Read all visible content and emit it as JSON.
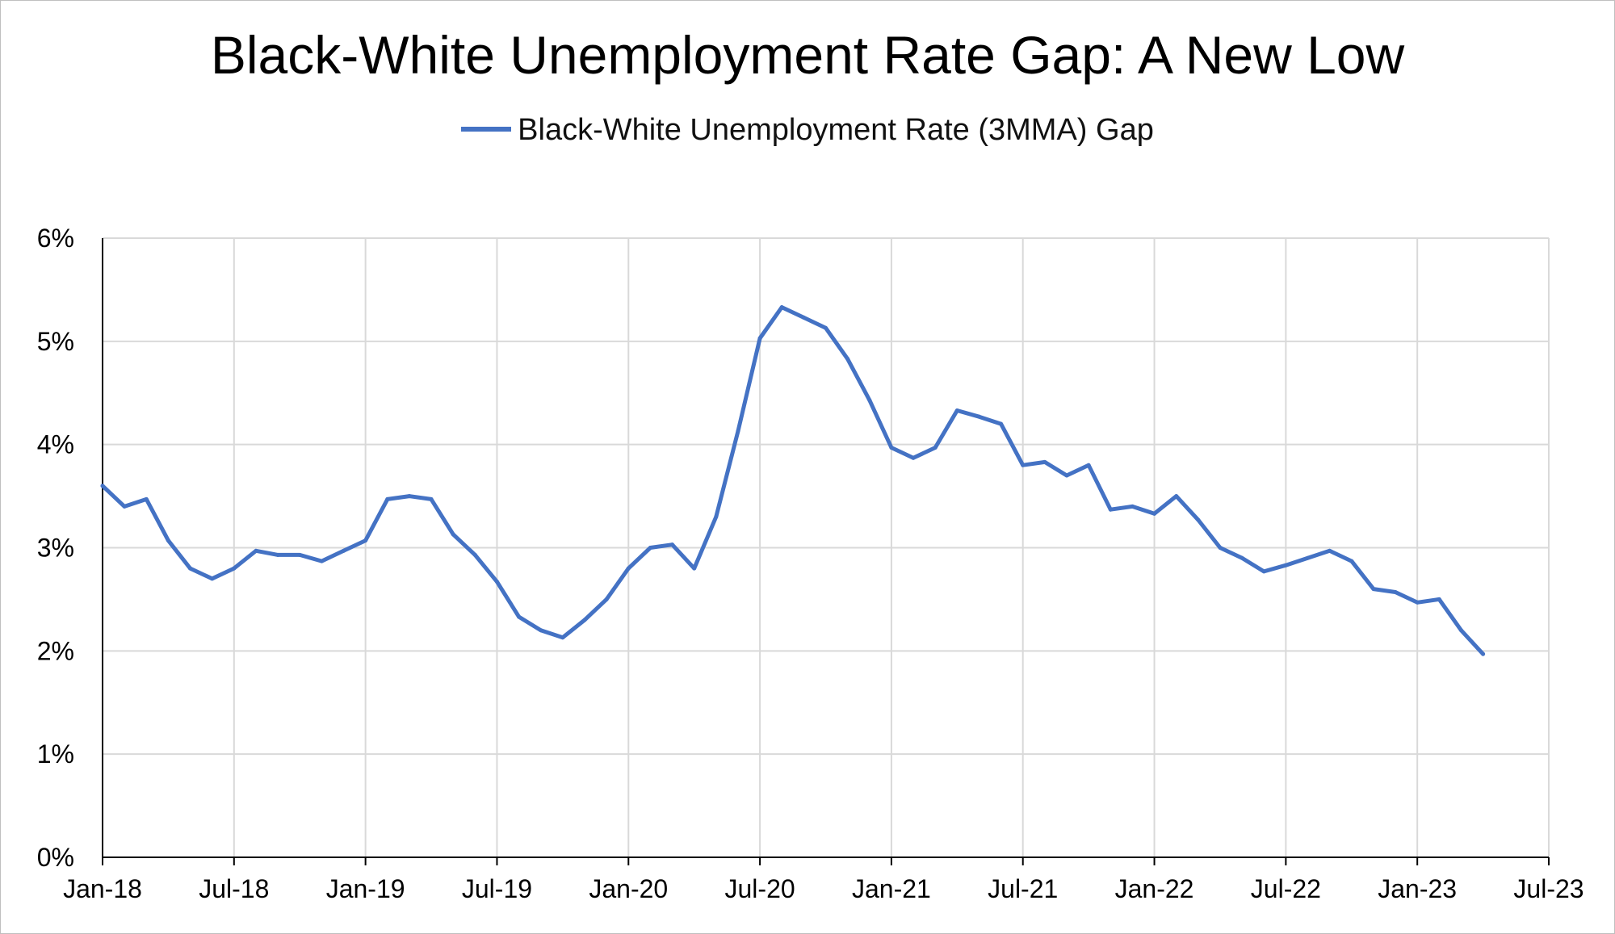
{
  "chart_data": {
    "type": "line",
    "title": "Black-White Unemployment Rate Gap: A New Low",
    "xlabel": "",
    "ylabel": "",
    "legend_position": "top-center",
    "grid": true,
    "ylim": [
      0,
      6
    ],
    "y_ticks": [
      "0%",
      "1%",
      "2%",
      "3%",
      "4%",
      "5%",
      "6%"
    ],
    "x_ticks": [
      "Jan-18",
      "Jul-18",
      "Jan-19",
      "Jul-19",
      "Jan-20",
      "Jul-20",
      "Jan-21",
      "Jul-21",
      "Jan-22",
      "Jul-22",
      "Jan-23",
      "Jul-23"
    ],
    "x_start": "Jan-18",
    "x_end": "Jul-23",
    "series": [
      {
        "name": "Black-White Unemployment Rate (3MMA) Gap",
        "color": "#4472c4",
        "x": [
          "Jan-18",
          "Feb-18",
          "Mar-18",
          "Apr-18",
          "May-18",
          "Jun-18",
          "Jul-18",
          "Aug-18",
          "Sep-18",
          "Oct-18",
          "Nov-18",
          "Dec-18",
          "Jan-19",
          "Feb-19",
          "Mar-19",
          "Apr-19",
          "May-19",
          "Jun-19",
          "Jul-19",
          "Aug-19",
          "Sep-19",
          "Oct-19",
          "Nov-19",
          "Dec-19",
          "Jan-20",
          "Feb-20",
          "Mar-20",
          "Apr-20",
          "May-20",
          "Jun-20",
          "Jul-20",
          "Aug-20",
          "Sep-20",
          "Oct-20",
          "Nov-20",
          "Dec-20",
          "Jan-21",
          "Feb-21",
          "Mar-21",
          "Apr-21",
          "May-21",
          "Jun-21",
          "Jul-21",
          "Aug-21",
          "Sep-21",
          "Oct-21",
          "Nov-21",
          "Dec-21",
          "Jan-22",
          "Feb-22",
          "Mar-22",
          "Apr-22",
          "May-22",
          "Jun-22",
          "Jul-22",
          "Aug-22",
          "Sep-22",
          "Oct-22",
          "Nov-22",
          "Dec-22",
          "Jan-23",
          "Feb-23",
          "Mar-23",
          "Apr-23"
        ],
        "values": [
          3.6,
          3.4,
          3.47,
          3.07,
          2.8,
          2.7,
          2.8,
          2.97,
          2.93,
          2.93,
          2.87,
          2.97,
          3.07,
          3.47,
          3.5,
          3.47,
          3.13,
          2.93,
          2.67,
          2.33,
          2.2,
          2.13,
          2.3,
          2.5,
          2.8,
          3.0,
          3.03,
          2.8,
          3.3,
          4.13,
          5.03,
          5.33,
          5.23,
          5.13,
          4.83,
          4.43,
          3.97,
          3.87,
          3.97,
          4.33,
          4.27,
          4.2,
          3.8,
          3.83,
          3.7,
          3.8,
          3.37,
          3.4,
          3.33,
          3.5,
          3.27,
          3.0,
          2.9,
          2.77,
          2.83,
          2.9,
          2.97,
          2.87,
          2.6,
          2.57,
          2.47,
          2.5,
          2.2,
          1.97
        ]
      }
    ]
  }
}
